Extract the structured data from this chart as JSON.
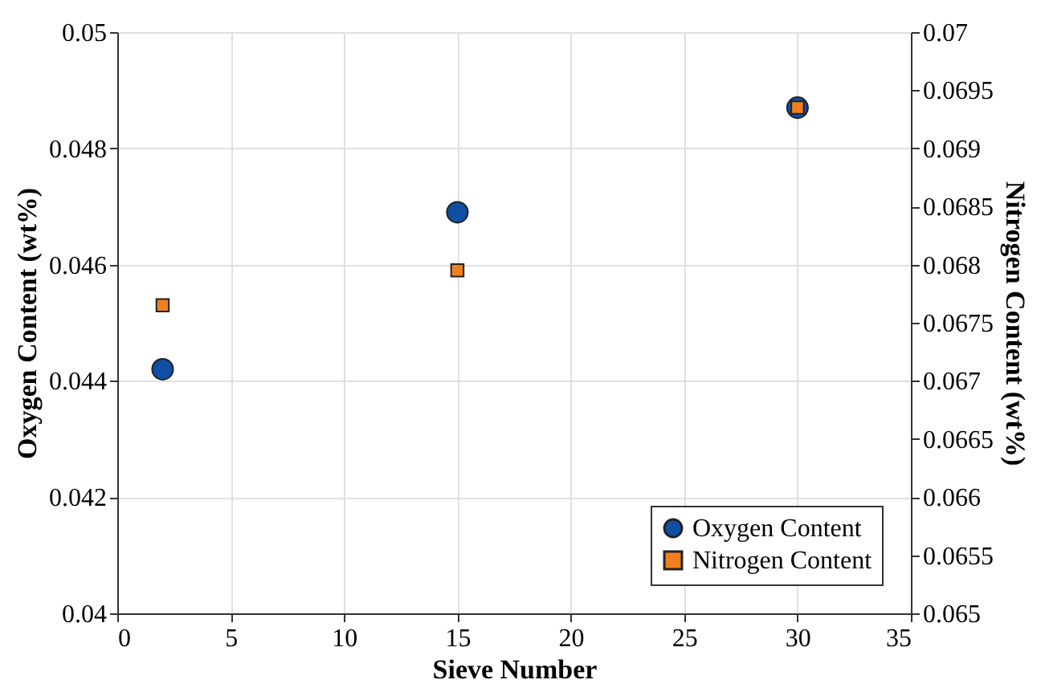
{
  "chart_data": {
    "type": "scatter",
    "xlabel": "Sieve Number",
    "ylabel": "Oxygen Content (wt%)",
    "y2label": "Nitrogen Content (wt%)",
    "series": [
      {
        "name": "Oxygen Content",
        "color": "#0e4fa3",
        "marker": "circle",
        "x": [
          2,
          15,
          30
        ],
        "values": [
          0.0442,
          0.0469,
          0.0487
        ]
      },
      {
        "name": "Nitrogen Content",
        "color": "#f07f1e",
        "marker": "square",
        "axis": "y2",
        "x": [
          2,
          15,
          30
        ],
        "values": [
          0.06765,
          0.06795,
          0.06935
        ]
      }
    ],
    "xlim": [
      0,
      35
    ],
    "xticks": [
      0,
      5,
      10,
      15,
      20,
      25,
      30,
      35
    ],
    "ylim": [
      0.04,
      0.05
    ],
    "yticks": [
      0.04,
      0.042,
      0.044,
      0.046,
      0.048,
      0.05
    ],
    "y2lim": [
      0.065,
      0.07
    ],
    "y2ticks": [
      0.065,
      0.0655,
      0.066,
      0.0665,
      0.067,
      0.0675,
      0.068,
      0.0685,
      0.069,
      0.0695,
      0.07
    ],
    "grid": true,
    "legend": "bottom right"
  }
}
